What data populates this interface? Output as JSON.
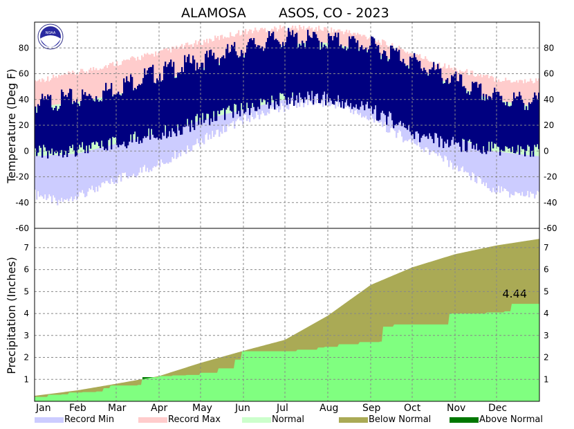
{
  "header": {
    "station": "ALAMOSA",
    "network_year": "ASOS, CO - 2023"
  },
  "logo": {
    "text": "NOAA"
  },
  "chart_data": [
    {
      "type": "bar",
      "panel": "temperature",
      "ylabel": "Temperature (Deg F)",
      "ylim": [
        -60,
        100
      ],
      "yticks": [
        -60,
        -40,
        -20,
        0,
        20,
        40,
        60,
        80
      ],
      "grid": true,
      "months": [
        "Jan",
        "Feb",
        "Mar",
        "Apr",
        "May",
        "Jun",
        "Jul",
        "Aug",
        "Sep",
        "Oct",
        "Nov",
        "Dec"
      ],
      "month_start_days": [
        0,
        31,
        59,
        90,
        120,
        151,
        181,
        212,
        243,
        273,
        304,
        334
      ],
      "days_in_year": 365,
      "series": [
        {
          "name": "Record Min",
          "color": "#ccccff",
          "x_day": [
            0,
            15,
            30,
            45,
            60,
            75,
            90,
            105,
            120,
            135,
            150,
            165,
            180,
            195,
            210,
            225,
            240,
            255,
            270,
            285,
            300,
            315,
            330,
            345,
            364
          ],
          "values": [
            -30,
            -35,
            -30,
            -25,
            -18,
            -12,
            -6,
            3,
            12,
            20,
            28,
            33,
            38,
            42,
            42,
            38,
            30,
            22,
            12,
            4,
            -6,
            -15,
            -25,
            -30,
            -30
          ]
        },
        {
          "name": "Record Max",
          "color": "#ffcccc",
          "x_day": [
            0,
            15,
            30,
            45,
            60,
            75,
            90,
            105,
            120,
            135,
            150,
            165,
            180,
            195,
            210,
            225,
            240,
            255,
            270,
            285,
            300,
            315,
            330,
            345,
            364
          ],
          "values": [
            52,
            55,
            58,
            62,
            66,
            70,
            74,
            78,
            82,
            86,
            90,
            92,
            93,
            93,
            92,
            90,
            86,
            80,
            74,
            68,
            62,
            58,
            54,
            52,
            52
          ]
        },
        {
          "name": "Normal",
          "color": "#ccffcc",
          "low_high": true,
          "x_day": [
            0,
            30,
            60,
            90,
            120,
            150,
            180,
            195,
            210,
            240,
            270,
            300,
            330,
            364
          ],
          "low": [
            -4,
            -2,
            6,
            14,
            24,
            32,
            40,
            46,
            46,
            38,
            24,
            12,
            0,
            -4
          ],
          "high": [
            34,
            38,
            44,
            54,
            64,
            74,
            82,
            84,
            84,
            78,
            66,
            52,
            40,
            34
          ]
        },
        {
          "name": "Observed",
          "color": "#000080",
          "low_high": true,
          "x_day": [
            0,
            20,
            40,
            60,
            80,
            100,
            120,
            140,
            160,
            180,
            200,
            220,
            240,
            260,
            280,
            300,
            320,
            340,
            364
          ],
          "low": [
            0,
            3,
            4,
            8,
            14,
            18,
            26,
            32,
            36,
            42,
            44,
            40,
            35,
            25,
            12,
            8,
            5,
            2,
            2
          ],
          "high": [
            36,
            40,
            42,
            50,
            58,
            64,
            70,
            76,
            83,
            88,
            86,
            85,
            82,
            76,
            66,
            56,
            46,
            40,
            38
          ]
        }
      ]
    },
    {
      "type": "area",
      "panel": "precipitation",
      "ylabel": "Precipitation (Inches)",
      "ylim": [
        0,
        7.5
      ],
      "yticks": [
        1,
        2,
        3,
        4,
        5,
        6,
        7
      ],
      "grid": true,
      "annotations": [
        {
          "text": "4.44",
          "x_day": 365,
          "y": 4.44
        }
      ],
      "series": [
        {
          "name": "Normal cumulative",
          "color": "#aaaa55",
          "x_day": [
            0,
            31,
            59,
            90,
            120,
            151,
            181,
            212,
            243,
            273,
            304,
            334,
            365
          ],
          "values": [
            0.25,
            0.5,
            0.8,
            1.15,
            1.75,
            2.3,
            2.8,
            3.9,
            5.3,
            6.1,
            6.7,
            7.1,
            7.4
          ]
        },
        {
          "name": "Observed cumulative",
          "color": "#80ff80",
          "x_day": [
            0,
            10,
            20,
            25,
            35,
            45,
            50,
            55,
            75,
            78,
            90,
            100,
            110,
            120,
            133,
            145,
            150,
            180,
            190,
            205,
            210,
            220,
            235,
            250,
            252,
            260,
            290,
            300,
            327,
            340,
            345,
            365
          ],
          "values": [
            0.2,
            0.3,
            0.32,
            0.4,
            0.42,
            0.45,
            0.6,
            0.72,
            0.75,
            1.1,
            1.15,
            1.18,
            1.2,
            1.3,
            1.5,
            1.9,
            2.28,
            2.28,
            2.35,
            2.45,
            2.48,
            2.6,
            2.7,
            2.72,
            3.4,
            3.5,
            3.5,
            4.0,
            4.05,
            4.1,
            4.44,
            4.44
          ]
        }
      ]
    }
  ],
  "legend": [
    {
      "label": "Record Min",
      "color": "#ccccff"
    },
    {
      "label": "Record Max",
      "color": "#ffcccc"
    },
    {
      "label": "Normal",
      "color": "#ccffcc"
    },
    {
      "label": "Below Normal",
      "color": "#aaaa55"
    },
    {
      "label": "Above Normal",
      "color": "#007700"
    }
  ]
}
